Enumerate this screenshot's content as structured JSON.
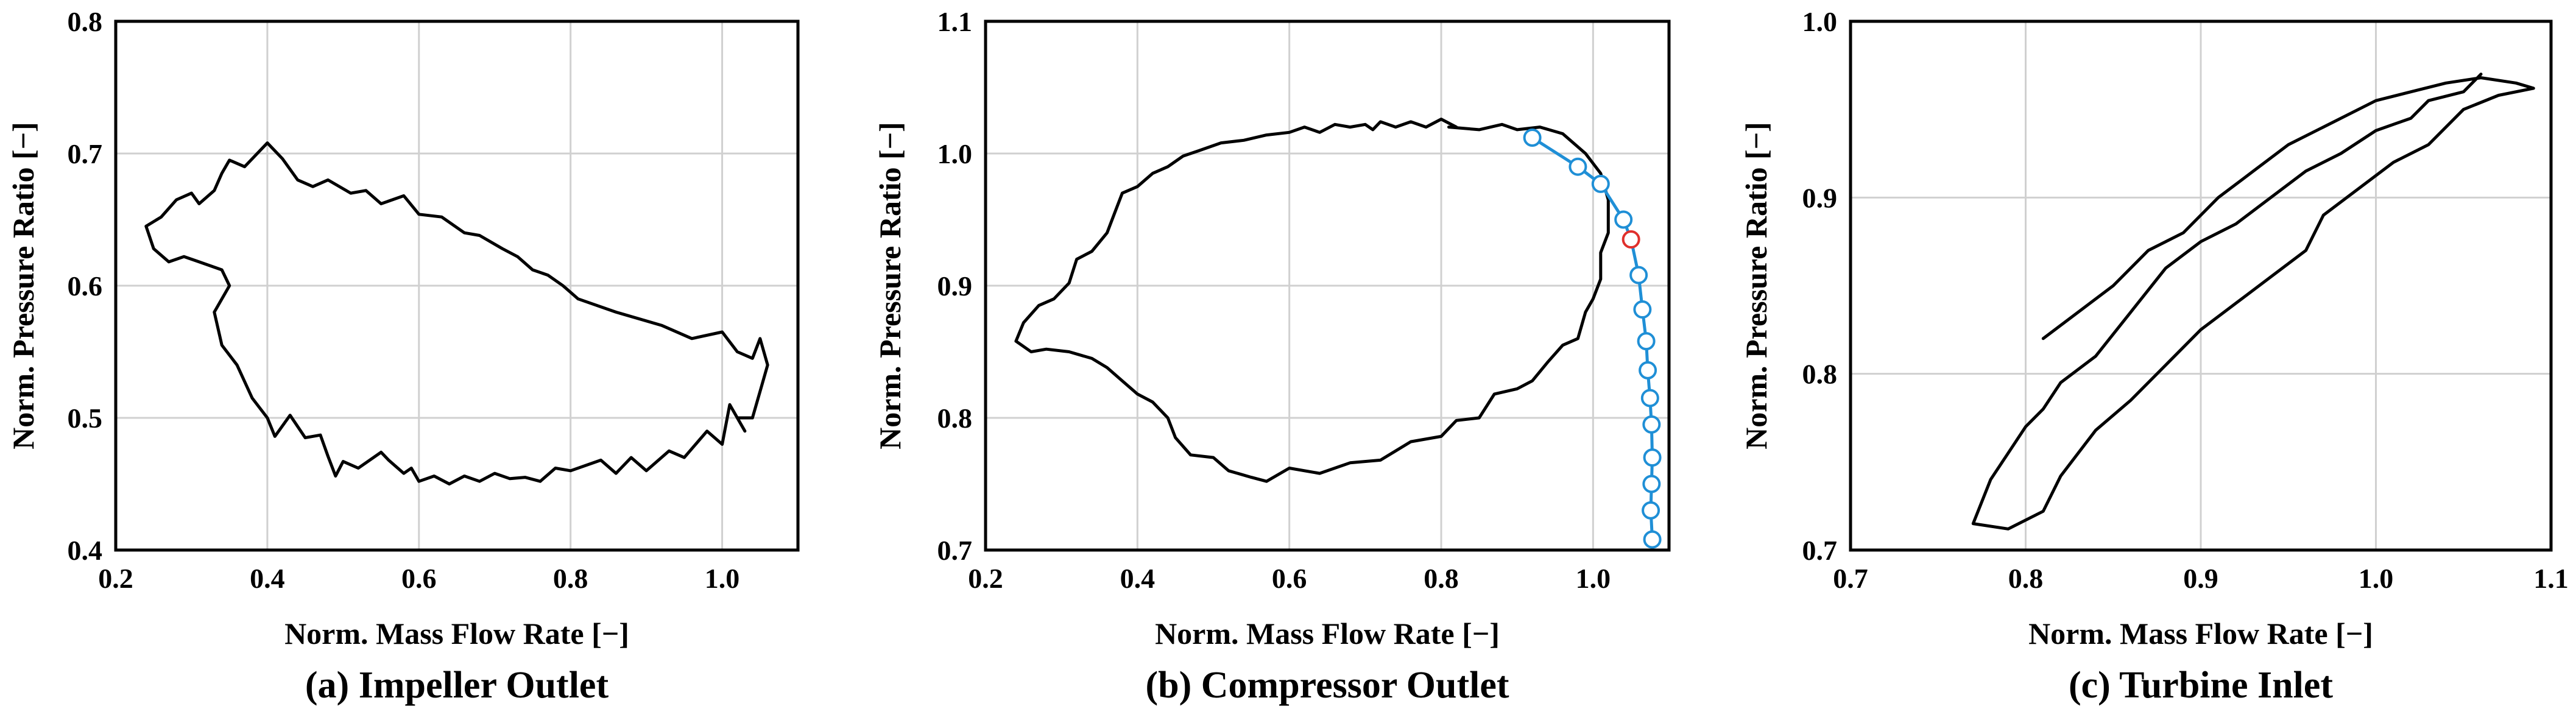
{
  "colors": {
    "loop": "#000000",
    "operating_line": "#1f8fd6",
    "marker_highlight": "#e0302c",
    "grid": "#d0d0d0"
  },
  "chart_data": [
    {
      "type": "line",
      "caption": "(a) Impeller Outlet",
      "xlabel": "Norm. Mass Flow Rate [−]",
      "ylabel": "Norm. Pressure Ratio [−]",
      "xlim": [
        0.2,
        1.1
      ],
      "ylim": [
        0.4,
        0.8
      ],
      "xticks": [
        "0.2",
        "0.4",
        "0.6",
        "0.8",
        "1.0"
      ],
      "yticks": [
        "0.4",
        "0.5",
        "0.6",
        "0.7",
        "0.8"
      ],
      "grid": true,
      "series": [
        {
          "x": [
            0.81,
            0.86,
            0.92,
            0.96,
            1.0,
            1.02,
            1.04,
            1.05,
            1.06,
            1.05,
            1.04,
            1.02,
            1.03,
            1.01,
            1.0,
            0.98,
            0.95,
            0.93,
            0.9,
            0.88,
            0.86,
            0.84,
            0.8,
            0.78,
            0.76,
            0.74,
            0.72,
            0.7,
            0.68,
            0.66,
            0.64,
            0.62,
            0.6,
            0.59,
            0.58,
            0.56,
            0.55,
            0.52,
            0.5,
            0.49,
            0.48,
            0.47,
            0.45,
            0.43,
            0.41,
            0.4,
            0.38,
            0.36,
            0.34,
            0.33,
            0.35,
            0.34,
            0.31,
            0.29,
            0.27,
            0.25,
            0.24,
            0.26,
            0.28,
            0.3,
            0.31,
            0.33,
            0.34,
            0.35,
            0.37,
            0.4,
            0.42,
            0.44,
            0.46,
            0.48,
            0.51,
            0.53,
            0.55,
            0.58,
            0.6,
            0.63,
            0.66,
            0.68,
            0.71,
            0.73,
            0.75,
            0.77,
            0.79,
            0.8,
            0.81
          ],
          "y": [
            0.59,
            0.58,
            0.57,
            0.56,
            0.565,
            0.55,
            0.545,
            0.56,
            0.54,
            0.52,
            0.5,
            0.5,
            0.49,
            0.51,
            0.48,
            0.49,
            0.47,
            0.475,
            0.46,
            0.47,
            0.458,
            0.468,
            0.46,
            0.462,
            0.452,
            0.455,
            0.454,
            0.458,
            0.452,
            0.456,
            0.45,
            0.456,
            0.452,
            0.462,
            0.458,
            0.468,
            0.474,
            0.462,
            0.467,
            0.456,
            0.471,
            0.487,
            0.485,
            0.502,
            0.486,
            0.5,
            0.515,
            0.54,
            0.555,
            0.58,
            0.6,
            0.612,
            0.618,
            0.622,
            0.618,
            0.628,
            0.645,
            0.652,
            0.665,
            0.67,
            0.662,
            0.672,
            0.685,
            0.695,
            0.69,
            0.708,
            0.696,
            0.68,
            0.675,
            0.68,
            0.67,
            0.672,
            0.662,
            0.668,
            0.654,
            0.652,
            0.64,
            0.638,
            0.628,
            0.622,
            0.612,
            0.608,
            0.6,
            0.595,
            0.59
          ]
        }
      ]
    },
    {
      "type": "line",
      "caption": "(b) Compressor Outlet",
      "xlabel": "Norm. Mass Flow Rate [−]",
      "ylabel": "Norm. Pressure Ratio [−]",
      "xlim": [
        0.2,
        1.1
      ],
      "ylim": [
        0.7,
        1.1
      ],
      "xticks": [
        "0.2",
        "0.4",
        "0.6",
        "0.8",
        "1.0"
      ],
      "yticks": [
        "0.7",
        "0.8",
        "0.9",
        "1.0",
        "1.1"
      ],
      "grid": true,
      "series": [
        {
          "x": [
            0.81,
            0.85,
            0.88,
            0.9,
            0.93,
            0.96,
            0.99,
            1.01,
            1.02,
            1.02,
            1.01,
            1.01,
            1.0,
            0.99,
            0.98,
            0.96,
            0.94,
            0.92,
            0.9,
            0.87,
            0.85,
            0.82,
            0.8,
            0.76,
            0.72,
            0.68,
            0.64,
            0.6,
            0.57,
            0.55,
            0.52,
            0.5,
            0.47,
            0.45,
            0.44,
            0.42,
            0.4,
            0.38,
            0.36,
            0.34,
            0.31,
            0.28,
            0.26,
            0.24,
            0.25,
            0.27,
            0.29,
            0.31,
            0.32,
            0.34,
            0.36,
            0.37,
            0.38,
            0.4,
            0.42,
            0.44,
            0.46,
            0.48,
            0.51,
            0.54,
            0.57,
            0.6,
            0.62,
            0.64,
            0.66,
            0.68,
            0.7,
            0.71,
            0.72,
            0.74,
            0.76,
            0.78,
            0.8,
            0.82
          ],
          "y": [
            1.02,
            1.018,
            1.022,
            1.018,
            1.02,
            1.015,
            1.0,
            0.985,
            0.965,
            0.94,
            0.925,
            0.905,
            0.89,
            0.88,
            0.86,
            0.855,
            0.842,
            0.828,
            0.822,
            0.818,
            0.8,
            0.798,
            0.786,
            0.782,
            0.768,
            0.766,
            0.758,
            0.762,
            0.752,
            0.755,
            0.76,
            0.77,
            0.772,
            0.785,
            0.8,
            0.812,
            0.818,
            0.828,
            0.838,
            0.845,
            0.85,
            0.852,
            0.85,
            0.858,
            0.872,
            0.885,
            0.89,
            0.902,
            0.92,
            0.926,
            0.94,
            0.955,
            0.97,
            0.975,
            0.985,
            0.99,
            0.998,
            1.002,
            1.008,
            1.01,
            1.014,
            1.016,
            1.02,
            1.016,
            1.022,
            1.02,
            1.022,
            1.018,
            1.024,
            1.02,
            1.024,
            1.02,
            1.026,
            1.02
          ]
        }
      ],
      "operating_line": {
        "x": [
          0.92,
          0.98,
          1.01,
          1.04,
          1.05,
          1.06,
          1.065,
          1.07,
          1.072,
          1.075,
          1.077,
          1.078,
          1.077,
          1.076,
          1.078
        ],
        "y": [
          1.012,
          0.99,
          0.977,
          0.95,
          0.935,
          0.908,
          0.882,
          0.858,
          0.836,
          0.815,
          0.795,
          0.77,
          0.75,
          0.73,
          0.708
        ],
        "highlight_index": 4
      }
    },
    {
      "type": "line",
      "caption": "(c) Turbine Inlet",
      "xlabel": "Norm. Mass Flow Rate [−]",
      "ylabel": "Norm. Pressure Ratio [−]",
      "xlim": [
        0.7,
        1.1
      ],
      "ylim": [
        0.7,
        1.0
      ],
      "xticks": [
        "0.7",
        "0.8",
        "0.9",
        "1.0",
        "1.1"
      ],
      "yticks": [
        "0.7",
        "0.8",
        "0.9",
        "1.0"
      ],
      "grid": true,
      "series": [
        {
          "x": [
            0.81,
            0.83,
            0.85,
            0.87,
            0.89,
            0.91,
            0.93,
            0.95,
            0.97,
            1.0,
            1.02,
            1.04,
            1.06,
            1.08,
            1.09,
            1.07,
            1.05,
            1.03,
            1.01,
            0.99,
            0.97,
            0.96,
            0.94,
            0.92,
            0.9,
            0.88,
            0.86,
            0.84,
            0.82,
            0.81,
            0.79,
            0.77,
            0.78,
            0.8,
            0.81,
            0.82,
            0.84,
            0.86,
            0.88,
            0.9,
            0.92,
            0.94,
            0.96,
            0.98,
            1.0,
            1.02,
            1.03,
            1.05,
            1.06
          ],
          "y": [
            0.82,
            0.835,
            0.85,
            0.87,
            0.88,
            0.9,
            0.915,
            0.93,
            0.94,
            0.955,
            0.96,
            0.965,
            0.968,
            0.965,
            0.962,
            0.958,
            0.95,
            0.93,
            0.92,
            0.905,
            0.89,
            0.87,
            0.855,
            0.84,
            0.825,
            0.805,
            0.785,
            0.768,
            0.742,
            0.722,
            0.712,
            0.715,
            0.74,
            0.77,
            0.78,
            0.795,
            0.81,
            0.835,
            0.86,
            0.875,
            0.885,
            0.9,
            0.915,
            0.925,
            0.938,
            0.945,
            0.955,
            0.96,
            0.97
          ]
        }
      ]
    }
  ]
}
